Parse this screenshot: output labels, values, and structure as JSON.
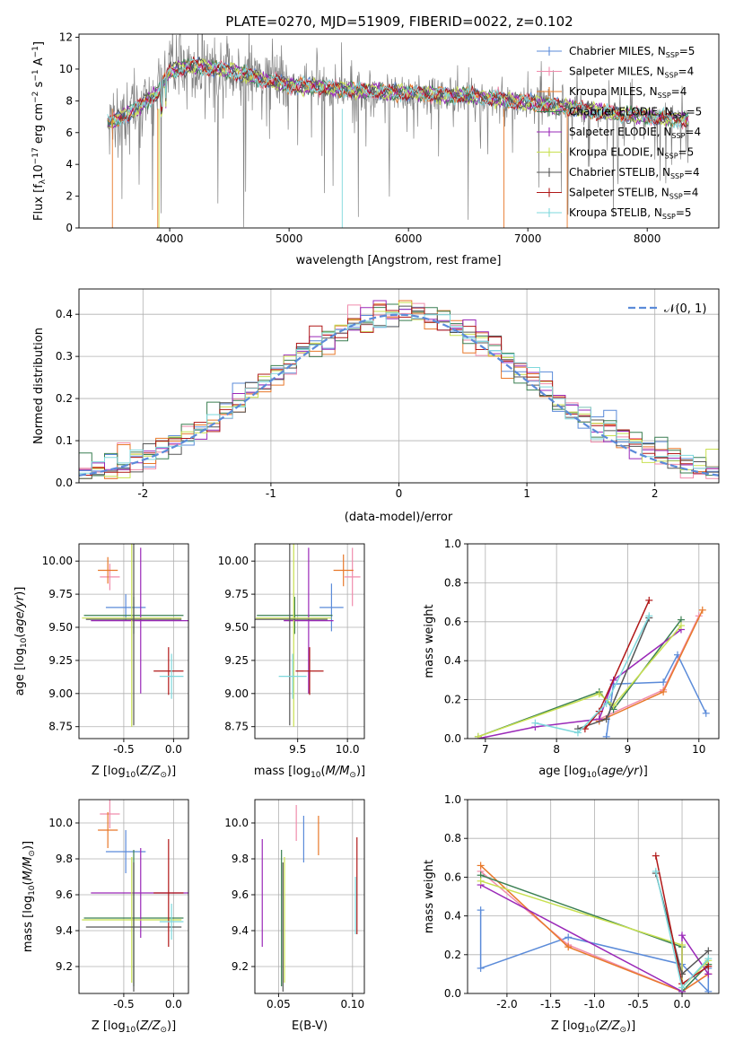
{
  "figure": {
    "title": "PLATE=0270, MJD=51909, FIBERID=0022, z=0.102"
  },
  "colors": {
    "Chabrier MILES": "#5b8bd9",
    "Salpeter MILES": "#f08cac",
    "Kroupa MILES": "#e8782a",
    "Chabrier ELODIE": "#3a7f52",
    "Salpeter ELODIE": "#9a28b8",
    "Kroupa ELODIE": "#c8e050",
    "Chabrier STELIB": "#555555",
    "Salpeter STELIB": "#b01818",
    "Kroupa STELIB": "#7ed8dc",
    "data": "#808080",
    "gaussian": "#5b8bd9"
  },
  "chart_data": [
    {
      "id": "spectrum",
      "type": "line",
      "xlabel": "wavelength [Angstrom, rest frame]",
      "ylabel": "Flux [f_λ 10^-17 erg cm^-2 s^-1 A^-1]",
      "xlim": [
        3240,
        8600
      ],
      "ylim": [
        0,
        12.2
      ],
      "xticks": [
        4000,
        5000,
        6000,
        7000,
        8000
      ],
      "yticks": [
        0,
        2,
        4,
        6,
        8,
        10,
        12
      ],
      "continuum": {
        "x": [
          3500,
          3700,
          3900,
          4000,
          4200,
          4500,
          4800,
          5000,
          5500,
          6000,
          6500,
          7000,
          7500,
          8000,
          8350
        ],
        "y": [
          6.6,
          7.4,
          8.5,
          9.9,
          10.2,
          9.9,
          9.3,
          9.0,
          8.7,
          8.5,
          8.3,
          7.9,
          7.4,
          7.0,
          6.8
        ]
      },
      "legend": [
        {
          "label": "Chabrier MILES",
          "nssp": "5"
        },
        {
          "label": "Salpeter MILES",
          "nssp": "4"
        },
        {
          "label": "Kroupa MILES",
          "nssp": "4"
        },
        {
          "label": "Chabrier ELODIE",
          "nssp": "5"
        },
        {
          "label": "Salpeter ELODIE",
          "nssp": "4"
        },
        {
          "label": "Kroupa ELODIE",
          "nssp": "5"
        },
        {
          "label": "Chabrier STELIB",
          "nssp": "4"
        },
        {
          "label": "Salpeter STELIB",
          "nssp": "4"
        },
        {
          "label": "Kroupa STELIB",
          "nssp": "5"
        }
      ],
      "legend_position": "right"
    },
    {
      "id": "residuals",
      "type": "histogram",
      "xlabel": "(data-model)/error",
      "ylabel": "Normed distribution",
      "xlim": [
        -2.5,
        2.5
      ],
      "ylim": [
        0,
        0.46
      ],
      "xticks": [
        -2,
        -1,
        0,
        1,
        2
      ],
      "yticks": [
        0.0,
        0.1,
        0.2,
        0.3,
        0.4
      ],
      "bin_width": 0.1,
      "legend": "N(0,1)",
      "legend_position": "upper right"
    },
    {
      "id": "age-vs-z",
      "type": "errorbar",
      "xlabel": "Z [log10(Z/Z⊙)]",
      "ylabel": "age  [log10(age/yr)]",
      "xlim": [
        -0.95,
        0.15
      ],
      "ylim": [
        8.66,
        10.13
      ],
      "xticks": [
        -0.5,
        0.0
      ],
      "yticks": [
        8.75,
        9.0,
        9.25,
        9.5,
        9.75,
        10.0
      ],
      "points": [
        {
          "m": "Chabrier MILES",
          "x": -0.48,
          "xerr": 0.2,
          "y": 9.65,
          "yerr": 0.1
        },
        {
          "m": "Salpeter MILES",
          "x": -0.64,
          "xerr": 0.1,
          "y": 9.88,
          "yerr": 0.1
        },
        {
          "m": "Kroupa MILES",
          "x": -0.66,
          "xerr": 0.1,
          "y": 9.93,
          "yerr": 0.1
        },
        {
          "m": "Chabrier ELODIE",
          "x": -0.4,
          "xerr": 0.5,
          "y": 9.59,
          "yerr": 0.14
        },
        {
          "m": "Salpeter ELODIE",
          "x": -0.33,
          "xerr": 0.5,
          "y": 9.55,
          "yerr": 0.55
        },
        {
          "m": "Kroupa ELODIE",
          "x": -0.42,
          "xerr": 0.5,
          "y": 9.57,
          "yerr": 0.82
        },
        {
          "m": "Chabrier STELIB",
          "x": -0.4,
          "xerr": 0.48,
          "y": 9.56,
          "yerr": 0.8
        },
        {
          "m": "Salpeter STELIB",
          "x": -0.05,
          "xerr": 0.15,
          "y": 9.17,
          "yerr": 0.18
        },
        {
          "m": "Kroupa STELIB",
          "x": -0.02,
          "xerr": 0.12,
          "y": 9.13,
          "yerr": 0.17
        }
      ]
    },
    {
      "id": "age-vs-mass",
      "type": "errorbar",
      "xlabel": "mass [log10(M/M⊙)]",
      "xlim": [
        9.07,
        10.17
      ],
      "ylim": [
        8.66,
        10.13
      ],
      "xticks": [
        9.5,
        10.0
      ],
      "yticks": [
        8.75,
        9.0,
        9.25,
        9.5,
        9.75,
        10.0
      ],
      "points": [
        {
          "m": "Chabrier MILES",
          "x": 9.84,
          "xerr": 0.12,
          "y": 9.65,
          "yerr": 0.18
        },
        {
          "m": "Salpeter MILES",
          "x": 10.05,
          "xerr": 0.08,
          "y": 9.88,
          "yerr": 0.22
        },
        {
          "m": "Kroupa MILES",
          "x": 9.96,
          "xerr": 0.1,
          "y": 9.93,
          "yerr": 0.12
        },
        {
          "m": "Chabrier ELODIE",
          "x": 9.47,
          "xerr": 0.38,
          "y": 9.59,
          "yerr": 0.14
        },
        {
          "m": "Salpeter ELODIE",
          "x": 9.61,
          "xerr": 0.25,
          "y": 9.55,
          "yerr": 0.55
        },
        {
          "m": "Kroupa ELODIE",
          "x": 9.46,
          "xerr": 0.38,
          "y": 9.57,
          "yerr": 0.82
        },
        {
          "m": "Chabrier STELIB",
          "x": 9.42,
          "xerr": 0.38,
          "y": 9.56,
          "yerr": 0.8
        },
        {
          "m": "Salpeter STELIB",
          "x": 9.62,
          "xerr": 0.14,
          "y": 9.17,
          "yerr": 0.18
        },
        {
          "m": "Kroupa STELIB",
          "x": 9.45,
          "xerr": 0.14,
          "y": 9.13,
          "yerr": 0.17
        }
      ]
    },
    {
      "id": "weight-vs-age",
      "type": "line",
      "xlabel": "age  [log10(age/yr)]",
      "ylabel": "mass weight",
      "xlim": [
        6.75,
        10.28
      ],
      "ylim": [
        0,
        1.0
      ],
      "xticks": [
        7,
        8,
        9,
        10
      ],
      "yticks": [
        0.0,
        0.2,
        0.4,
        0.6,
        0.8,
        1.0
      ],
      "series": [
        {
          "m": "Chabrier MILES",
          "x": [
            8.7,
            8.8,
            9.5,
            9.7,
            10.1
          ],
          "y": [
            0.01,
            0.28,
            0.29,
            0.43,
            0.13
          ]
        },
        {
          "m": "Salpeter MILES",
          "x": [
            8.6,
            9.5,
            10.0
          ],
          "y": [
            0.1,
            0.25,
            0.63
          ]
        },
        {
          "m": "Kroupa MILES",
          "x": [
            8.6,
            9.5,
            10.05
          ],
          "y": [
            0.09,
            0.24,
            0.66
          ]
        },
        {
          "m": "Chabrier ELODIE",
          "x": [
            6.9,
            8.6,
            8.8,
            9.75
          ],
          "y": [
            0.01,
            0.24,
            0.15,
            0.61
          ]
        },
        {
          "m": "Salpeter ELODIE",
          "x": [
            6.9,
            7.7,
            8.6,
            8.8,
            9.75
          ],
          "y": [
            0.0,
            0.06,
            0.1,
            0.3,
            0.56
          ]
        },
        {
          "m": "Kroupa ELODIE",
          "x": [
            6.9,
            8.6,
            8.8,
            9.75
          ],
          "y": [
            0.01,
            0.23,
            0.17,
            0.58
          ]
        },
        {
          "m": "Chabrier STELIB",
          "x": [
            8.3,
            8.7,
            9.3
          ],
          "y": [
            0.05,
            0.1,
            0.62
          ]
        },
        {
          "m": "Salpeter STELIB",
          "x": [
            8.4,
            8.6,
            9.3
          ],
          "y": [
            0.05,
            0.14,
            0.71
          ]
        },
        {
          "m": "Kroupa STELIB",
          "x": [
            7.7,
            8.3,
            8.7,
            9.3
          ],
          "y": [
            0.08,
            0.03,
            0.18,
            0.63
          ]
        }
      ]
    },
    {
      "id": "mass-vs-z",
      "type": "errorbar",
      "xlabel": "Z [log10(Z/Z⊙)]",
      "ylabel": "mass [log10(M/M⊙)]",
      "xlim": [
        -0.95,
        0.15
      ],
      "ylim": [
        9.05,
        10.13
      ],
      "xticks": [
        -0.5,
        0.0
      ],
      "yticks": [
        9.2,
        9.4,
        9.6,
        9.8,
        10.0
      ],
      "points": [
        {
          "m": "Chabrier MILES",
          "x": -0.48,
          "xerr": 0.2,
          "y": 9.84,
          "yerr": 0.12
        },
        {
          "m": "Salpeter MILES",
          "x": -0.64,
          "xerr": 0.1,
          "y": 10.05,
          "yerr": 0.08
        },
        {
          "m": "Kroupa MILES",
          "x": -0.66,
          "xerr": 0.1,
          "y": 9.96,
          "yerr": 0.1
        },
        {
          "m": "Chabrier ELODIE",
          "x": -0.4,
          "xerr": 0.5,
          "y": 9.47,
          "yerr": 0.38
        },
        {
          "m": "Salpeter ELODIE",
          "x": -0.33,
          "xerr": 0.5,
          "y": 9.61,
          "yerr": 0.25
        },
        {
          "m": "Kroupa ELODIE",
          "x": -0.42,
          "xerr": 0.5,
          "y": 9.46,
          "yerr": 0.35
        },
        {
          "m": "Chabrier STELIB",
          "x": -0.4,
          "xerr": 0.48,
          "y": 9.42,
          "yerr": 0.36
        },
        {
          "m": "Salpeter STELIB",
          "x": -0.05,
          "xerr": 0.15,
          "y": 9.61,
          "yerr": 0.3
        },
        {
          "m": "Kroupa STELIB",
          "x": -0.02,
          "xerr": 0.12,
          "y": 9.45,
          "yerr": 0.1
        }
      ]
    },
    {
      "id": "mass-vs-ebv",
      "type": "errorbar",
      "xlabel": "E(B-V)",
      "xlim": [
        0.034,
        0.108
      ],
      "ylim": [
        9.05,
        10.13
      ],
      "xticks": [
        0.05,
        0.1
      ],
      "yticks": [
        9.2,
        9.4,
        9.6,
        9.8,
        10.0
      ],
      "points": [
        {
          "m": "Chabrier MILES",
          "x": 0.067,
          "y": 9.91,
          "yerr": 0.13
        },
        {
          "m": "Salpeter MILES",
          "x": 0.062,
          "y": 10.0,
          "yerr": 0.1
        },
        {
          "m": "Kroupa MILES",
          "x": 0.077,
          "y": 9.93,
          "yerr": 0.11
        },
        {
          "m": "Chabrier ELODIE",
          "x": 0.052,
          "y": 9.47,
          "yerr": 0.38
        },
        {
          "m": "Salpeter ELODIE",
          "x": 0.039,
          "y": 9.61,
          "yerr": 0.3
        },
        {
          "m": "Kroupa ELODIE",
          "x": 0.054,
          "y": 9.46,
          "yerr": 0.35
        },
        {
          "m": "Chabrier STELIB",
          "x": 0.053,
          "y": 9.42,
          "yerr": 0.36
        },
        {
          "m": "Salpeter STELIB",
          "x": 0.103,
          "y": 9.65,
          "yerr": 0.27
        },
        {
          "m": "Kroupa STELIB",
          "x": 0.102,
          "y": 9.54,
          "yerr": 0.16
        }
      ]
    },
    {
      "id": "weight-vs-z",
      "type": "line",
      "xlabel": "Z [log10(Z/Z⊙)]",
      "ylabel": "mass weight",
      "xlim": [
        -2.45,
        0.42
      ],
      "ylim": [
        0,
        1.0
      ],
      "xticks": [
        -2.0,
        -1.5,
        -1.0,
        -0.5,
        0.0
      ],
      "yticks": [
        0.0,
        0.2,
        0.4,
        0.6,
        0.8,
        1.0
      ],
      "series": [
        {
          "m": "Chabrier MILES",
          "x": [
            -2.3,
            -2.3,
            -1.3,
            0.0,
            0.3,
            0.3
          ],
          "y": [
            0.43,
            0.13,
            0.29,
            0.15,
            0.01,
            0.13
          ]
        },
        {
          "m": "Salpeter MILES",
          "x": [
            -2.3,
            -1.3,
            0.0,
            0.3
          ],
          "y": [
            0.63,
            0.25,
            0.01,
            0.1
          ]
        },
        {
          "m": "Kroupa MILES",
          "x": [
            -2.3,
            -1.3,
            0.0,
            0.3
          ],
          "y": [
            0.66,
            0.24,
            0.01,
            0.1
          ]
        },
        {
          "m": "Chabrier ELODIE",
          "x": [
            -2.3,
            0.0,
            0.0,
            0.3
          ],
          "y": [
            0.61,
            0.24,
            0.01,
            0.15
          ]
        },
        {
          "m": "Salpeter ELODIE",
          "x": [
            -2.3,
            0.0,
            0.0,
            0.3
          ],
          "y": [
            0.56,
            0.01,
            0.3,
            0.1
          ]
        },
        {
          "m": "Kroupa ELODIE",
          "x": [
            -2.3,
            0.0,
            0.0,
            0.3
          ],
          "y": [
            0.58,
            0.25,
            0.03,
            0.17
          ]
        },
        {
          "m": "Chabrier STELIB",
          "x": [
            -0.3,
            0.0,
            0.3
          ],
          "y": [
            0.62,
            0.1,
            0.22
          ]
        },
        {
          "m": "Salpeter STELIB",
          "x": [
            -0.3,
            0.0,
            0.3
          ],
          "y": [
            0.71,
            0.05,
            0.14
          ]
        },
        {
          "m": "Kroupa STELIB",
          "x": [
            -0.3,
            0.0,
            0.3
          ],
          "y": [
            0.63,
            0.03,
            0.18
          ]
        }
      ]
    }
  ]
}
